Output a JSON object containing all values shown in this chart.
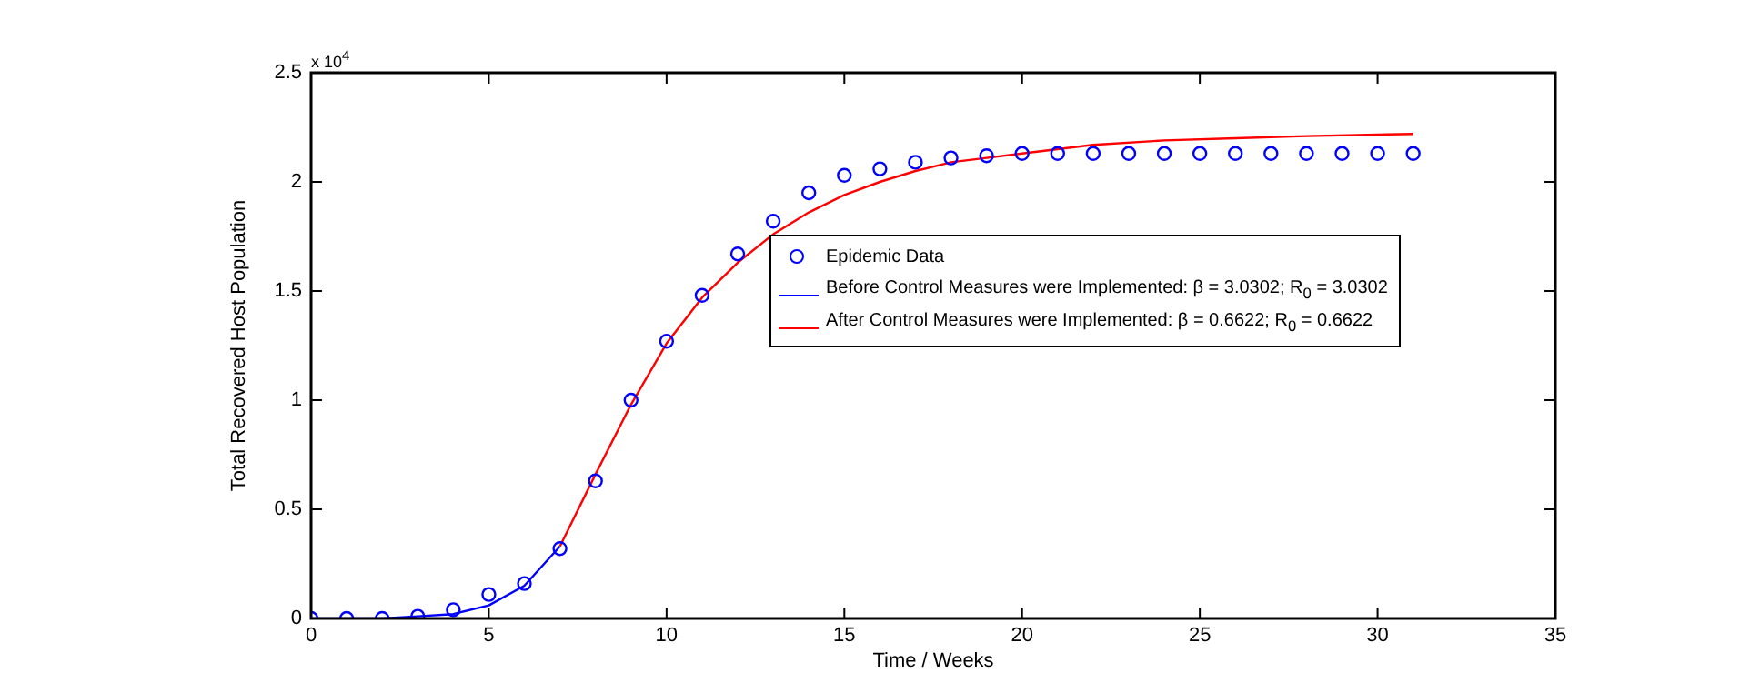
{
  "chart_data": {
    "type": "line",
    "xlabel": "Time / Weeks",
    "ylabel": "Total Recovered Host Population",
    "annotations": [
      "x 10$^{4}$"
    ],
    "xlim": [
      0,
      35
    ],
    "xticks": [
      0,
      5,
      10,
      15,
      20,
      25,
      30,
      35
    ],
    "ylim": [
      0,
      2.5
    ],
    "yticks": [
      0,
      0.5,
      1,
      1.5,
      2,
      2.5
    ],
    "grid": false,
    "legend": "right",
    "series": [
      {
        "name": "Epidemic Data",
        "type": "scatter",
        "marker": "circle",
        "color": "#0000ff",
        "x": [
          0,
          1,
          2,
          3,
          4,
          5,
          6,
          7,
          8,
          9,
          10,
          11,
          12,
          13,
          14,
          15,
          16,
          17,
          18,
          19,
          20,
          21,
          22,
          23,
          24,
          25,
          26,
          27,
          28,
          29,
          30,
          31
        ],
        "values": [
          0,
          0,
          0,
          0.01,
          0.04,
          0.11,
          0.16,
          0.32,
          0.63,
          1.0,
          1.27,
          1.48,
          1.67,
          1.82,
          1.95,
          2.03,
          2.06,
          2.09,
          2.11,
          2.12,
          2.13,
          2.13,
          2.13,
          2.13,
          2.13,
          2.13,
          2.13,
          2.13,
          2.13,
          2.13,
          2.13,
          2.13
        ]
      },
      {
        "name": "Before Control Measures were Implemented:  β = 3.0302; R$_{0}$ = 3.0302",
        "marker": "none",
        "line_style": "solid",
        "color": "#0000ff",
        "x": [
          0,
          1,
          2,
          3,
          4,
          5,
          6,
          7
        ],
        "values": [
          0,
          0,
          0,
          0.01,
          0.02,
          0.06,
          0.15,
          0.33
        ]
      },
      {
        "name": "After Control Measures were Implemented:  β = 0.6622; R$_{0}$ = 0.6622",
        "marker": "none",
        "line_style": "solid",
        "color": "#ff0000",
        "x": [
          7,
          8,
          9,
          10,
          11,
          12,
          13,
          14,
          15,
          16,
          17,
          18,
          19,
          20,
          22,
          24,
          26,
          28,
          31
        ],
        "values": [
          0.33,
          0.66,
          0.98,
          1.26,
          1.47,
          1.63,
          1.76,
          1.86,
          1.94,
          2.0,
          2.05,
          2.09,
          2.11,
          2.13,
          2.17,
          2.19,
          2.2,
          2.21,
          2.22
        ]
      }
    ]
  }
}
